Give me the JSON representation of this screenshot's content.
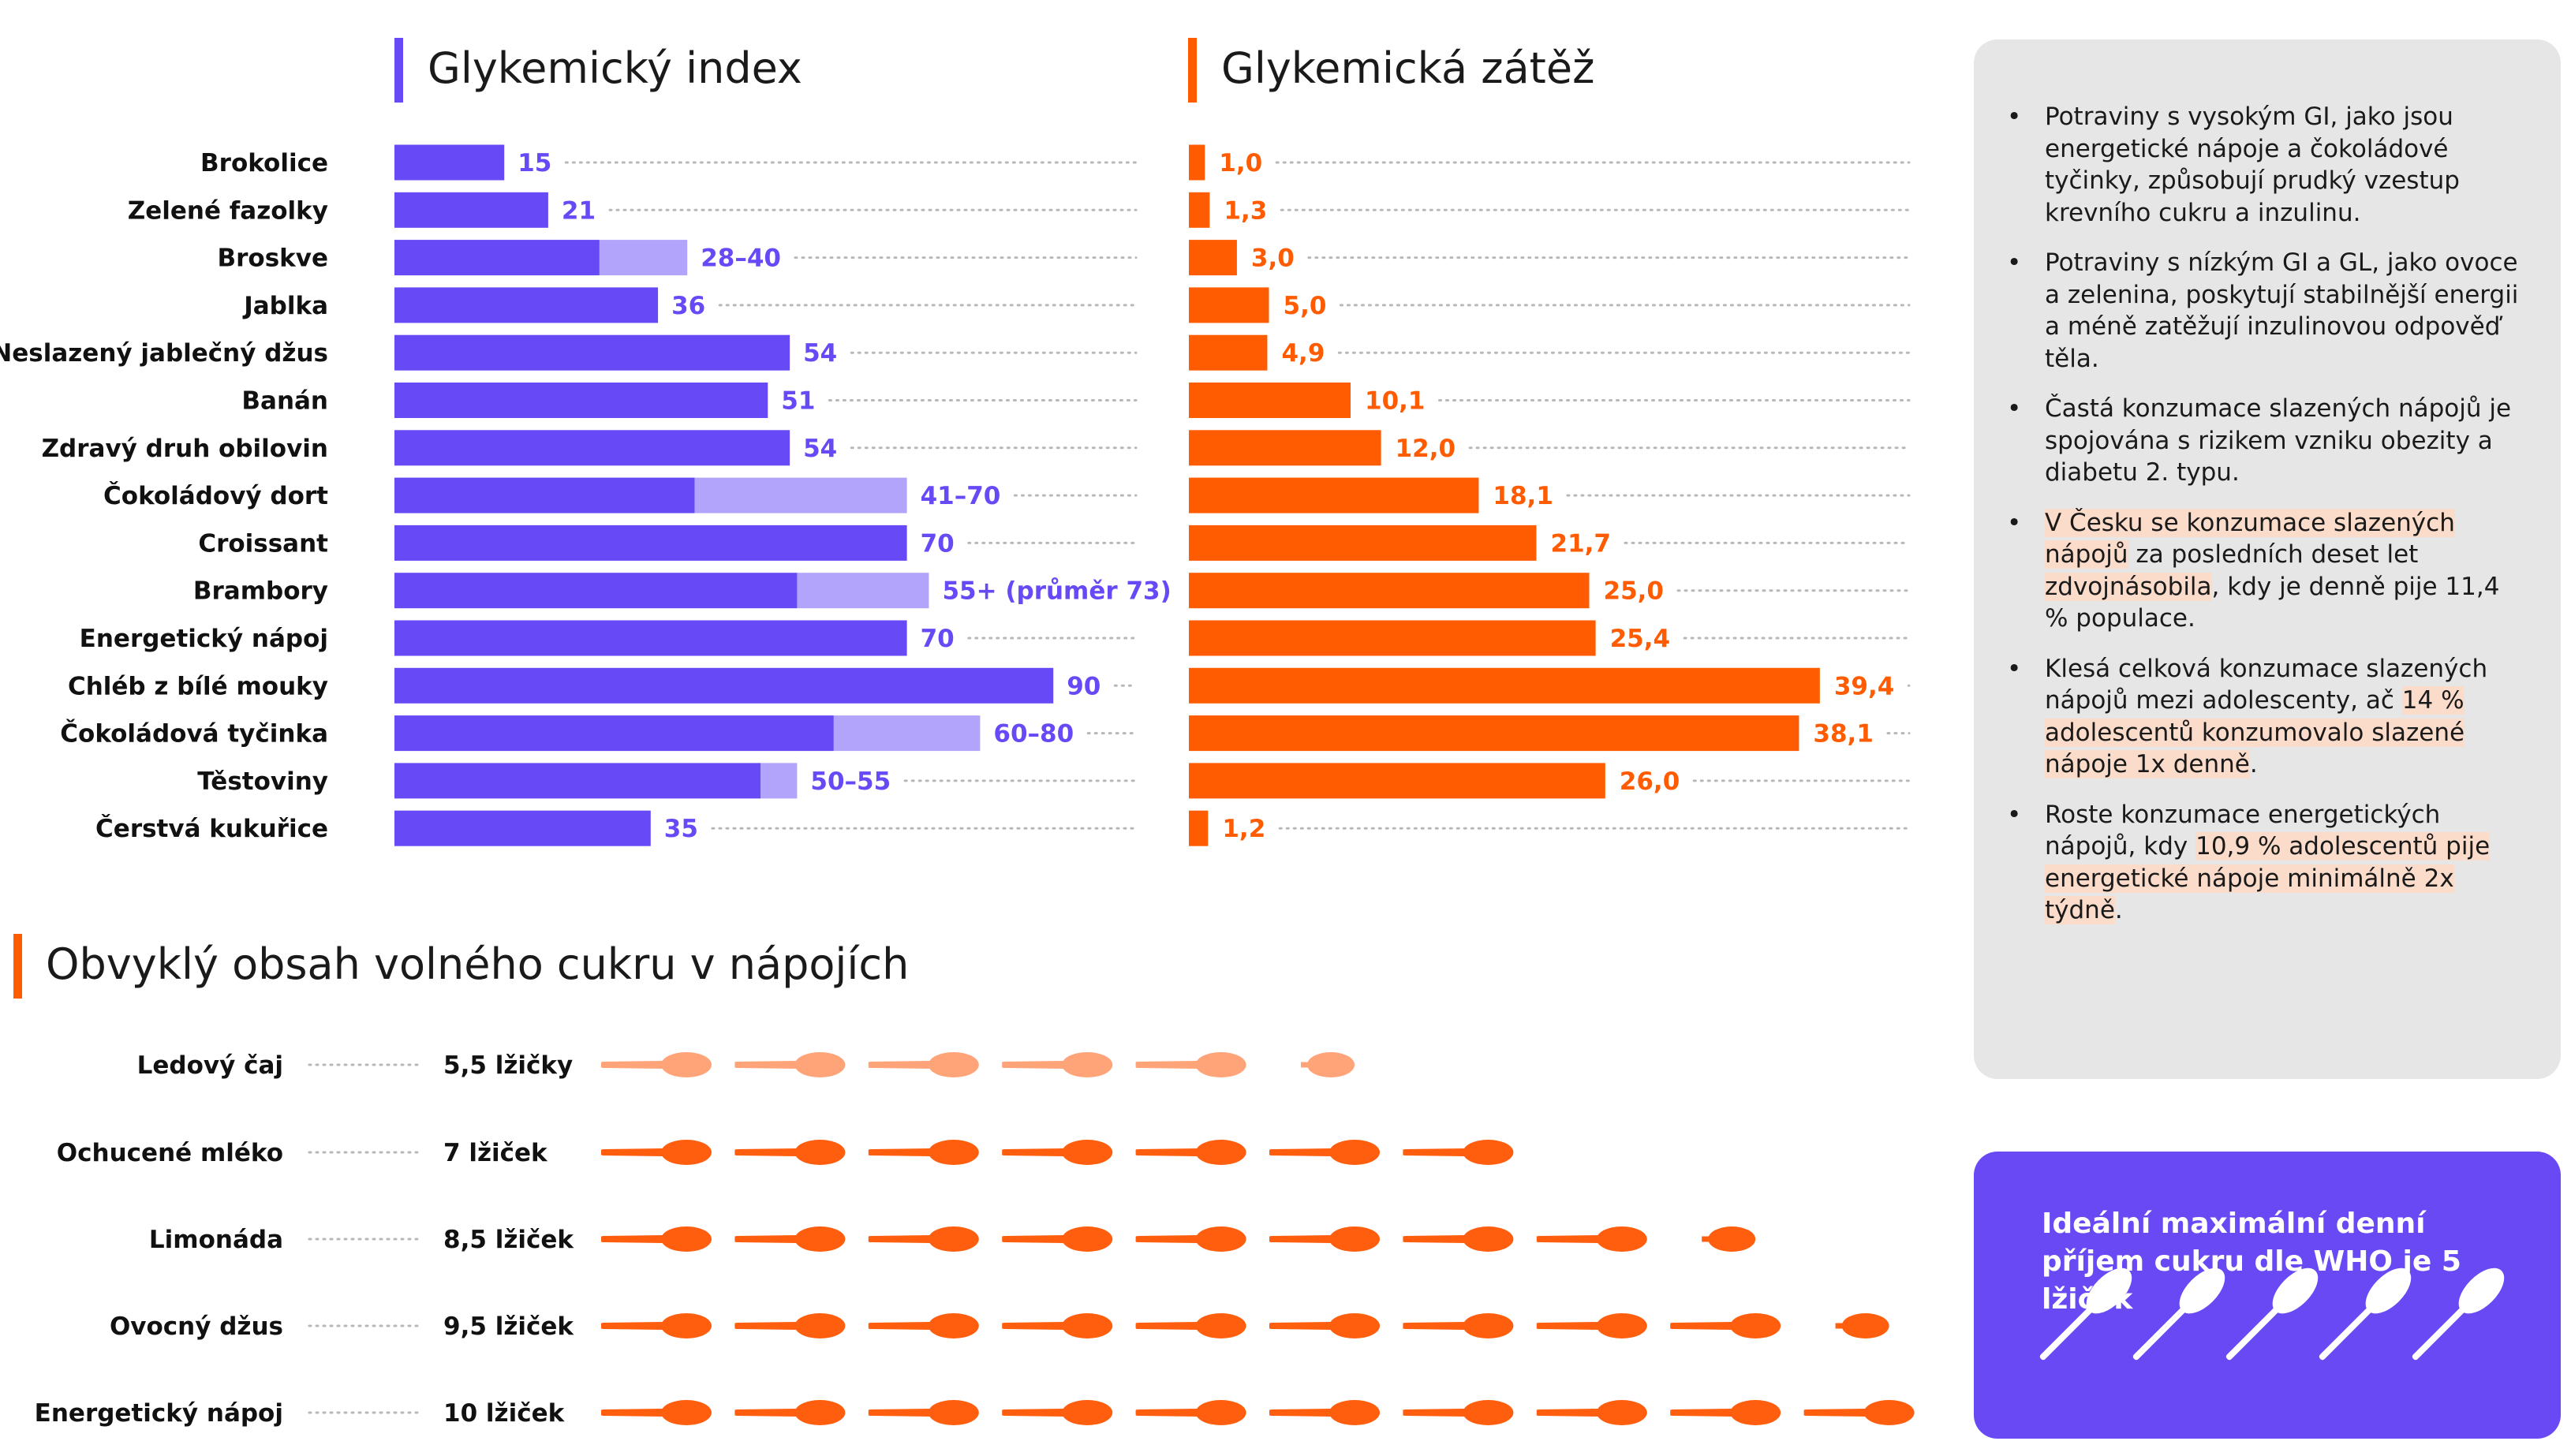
{
  "colors": {
    "gi_bar": "#6749f5",
    "gi_range": "#b3a4fb",
    "gi_label": "#6749f5",
    "gl_bar": "#ff5b00",
    "gl_label": "#ff5b00",
    "spoon_dark": "#ff5e0e",
    "spoon_light": "#ffa478",
    "panel_bg": "#e6e6e6",
    "who_bg": "#6849f4",
    "dots": "#b8b8b8"
  },
  "chart_data": [
    {
      "type": "bar",
      "orientation": "horizontal",
      "title": "Glykemický index",
      "categories": [
        "Brokolice",
        "Zelené fazolky",
        "Broskve",
        "Jablka",
        "Neslazený jablečný džus",
        "Banán",
        "Zdravý druh obilovin",
        "Čokoládový dort",
        "Croissant",
        "Brambory",
        "Energetický nápoj",
        "Chléb z bílé mouky",
        "Čokoládová tyčinka",
        "Těstoviny",
        "Čerstvá kukuřice"
      ],
      "values": [
        15,
        21,
        28,
        36,
        54,
        51,
        54,
        41,
        70,
        55,
        70,
        90,
        60,
        50,
        35
      ],
      "range_max": [
        null,
        null,
        40,
        null,
        null,
        null,
        null,
        70,
        null,
        73,
        null,
        null,
        80,
        55,
        null
      ],
      "labels": [
        "15",
        "21",
        "28–40",
        "36",
        "54",
        "51",
        "54",
        "41–70",
        "70",
        "55+ (průměr 73)",
        "70",
        "90",
        "60–80",
        "50–55",
        "35"
      ],
      "xlim": [
        0,
        100
      ]
    },
    {
      "type": "bar",
      "orientation": "horizontal",
      "title": "Glykemická zátěž",
      "categories": [
        "Brokolice",
        "Zelené fazolky",
        "Broskve",
        "Jablka",
        "Neslazený jablečný džus",
        "Banán",
        "Zdravý druh obilovin",
        "Čokoládový dort",
        "Croissant",
        "Brambory",
        "Energetický nápoj",
        "Chléb z bílé mouky",
        "Čokoládová tyčinka",
        "Těstoviny",
        "Čerstvá kukuřice"
      ],
      "values": [
        1.0,
        1.3,
        3.0,
        5.0,
        4.9,
        10.1,
        12.0,
        18.1,
        21.7,
        25.0,
        25.4,
        39.4,
        38.1,
        26.0,
        1.2
      ],
      "labels": [
        "1,0",
        "1,3",
        "3,0",
        "5,0",
        "4,9",
        "10,1",
        "12,0",
        "18,1",
        "21,7",
        "25,0",
        "25,4",
        "39,4",
        "38,1",
        "26,0",
        "1,2"
      ],
      "xlim": [
        0,
        45
      ]
    },
    {
      "type": "pictogram",
      "title": "Obvyklý obsah volného cukru v nápojích",
      "categories": [
        "Ledový čaj",
        "Ochucené mléko",
        "Limonáda",
        "Ovocný džus",
        "Energetický nápoj"
      ],
      "values": [
        5.5,
        7,
        8.5,
        9.5,
        10
      ],
      "labels": [
        "5,5 lžičky",
        "7 lžiček",
        "8,5 lžiček",
        "9,5 lžiček",
        "10 lžiček"
      ],
      "unit": "lžička",
      "highlight_color": [
        "light",
        "dark",
        "dark",
        "dark",
        "dark"
      ]
    }
  ],
  "info": {
    "bullets": [
      [
        {
          "t": "Potraviny s vysokým GI, jako jsou energetické nápoje a čokoládové tyčinky, způsobují prudký vzestup krevního cukru a inzulinu."
        }
      ],
      [
        {
          "t": "Potraviny s nízkým GI a GL, jako ovoce a zelenina, poskytují stabilnější energii a méně zatěžují inzulinovou odpověď těla."
        }
      ],
      [
        {
          "t": "Častá konzumace slazených nápojů je spojována s rizikem vzniku obezity a diabetu 2. typu."
        }
      ],
      [
        {
          "t": "V Česku se konzumace slazených nápojů",
          "hl": true
        },
        {
          "t": " za posledních deset let "
        },
        {
          "t": "zdvojnásobila",
          "hl": true
        },
        {
          "t": ", kdy je denně pije 11,4 % populace."
        }
      ],
      [
        {
          "t": "Klesá celková konzumace slazených nápojů mezi adolescenty, ač "
        },
        {
          "t": "14 % adolescentů konzumovalo slazené nápoje 1x denně",
          "hl": true
        },
        {
          "t": "."
        }
      ],
      [
        {
          "t": "Roste konzumace energetických nápojů, kdy "
        },
        {
          "t": "10,9 % adolescentů pije energetické nápoje minimálně 2x týdně",
          "hl": true
        },
        {
          "t": "."
        }
      ]
    ]
  },
  "who": {
    "text": "Ideální maximální denní příjem cukru dle WHO je 5 lžiček",
    "spoons": 5
  }
}
